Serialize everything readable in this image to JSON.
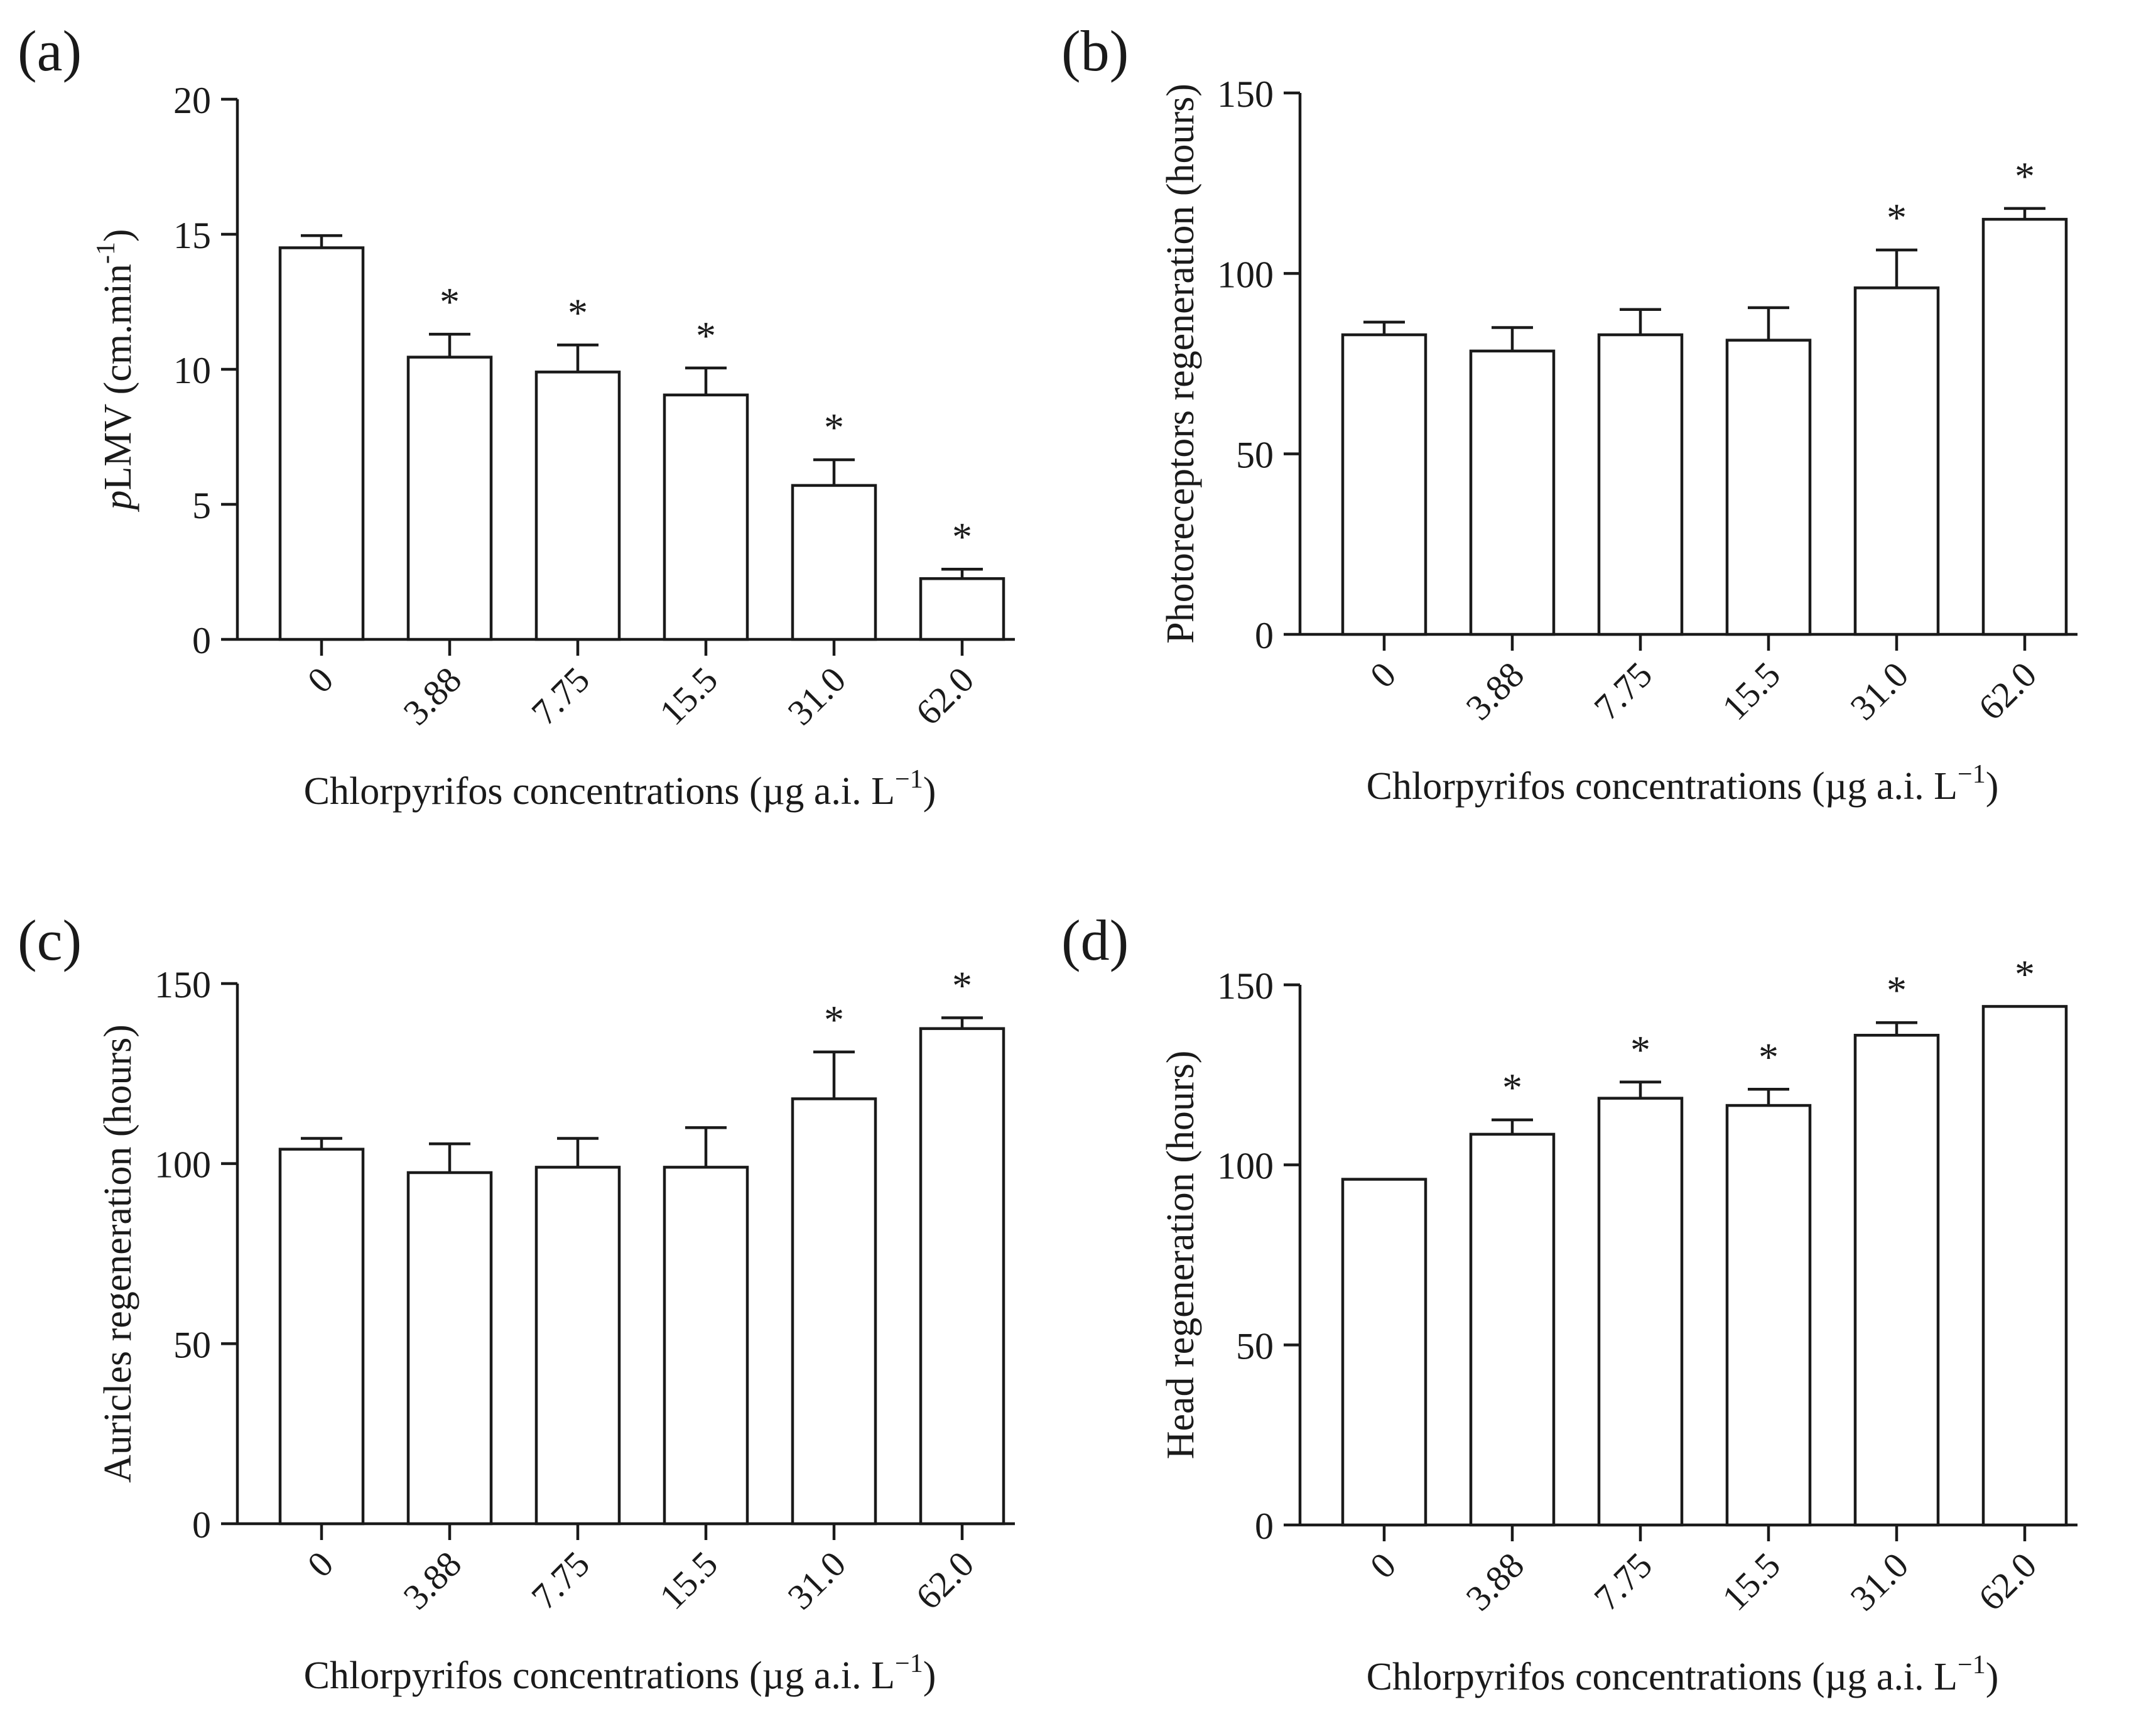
{
  "figure": {
    "panels": [
      {
        "label": "(a)"
      },
      {
        "label": "(b)"
      },
      {
        "label": "(c)"
      },
      {
        "label": "(d)"
      }
    ]
  },
  "chart_data": [
    {
      "panel": "(a)",
      "type": "bar",
      "categories": [
        "0",
        "3.88",
        "7.75",
        "15.5",
        "31.0",
        "62.0"
      ],
      "values": [
        14.5,
        10.45,
        9.9,
        9.05,
        5.7,
        2.25
      ],
      "errors": [
        0.45,
        0.85,
        1.0,
        1.0,
        0.95,
        0.35
      ],
      "significance": [
        "",
        "*",
        "*",
        "*",
        "*",
        "*"
      ],
      "ylim": [
        0,
        20
      ],
      "yticks": [
        0,
        5,
        10,
        15,
        20
      ],
      "ylabel": {
        "italic": "p",
        "main": "LMV (cm.min",
        "sup": "-1",
        "close": ")"
      },
      "xlabel": {
        "main": "Chlorpyrifos concentrations (µg a.i. L",
        "sup": "−1",
        "close": ")"
      }
    },
    {
      "panel": "(b)",
      "type": "bar",
      "categories": [
        "0",
        "3.88",
        "7.75",
        "15.5",
        "31.0",
        "62.0"
      ],
      "values": [
        83,
        78.5,
        83,
        81.5,
        96,
        115
      ],
      "errors": [
        3.5,
        6.5,
        7,
        9,
        10.5,
        3
      ],
      "significance": [
        "",
        "",
        "",
        "",
        "*",
        "*"
      ],
      "ylim": [
        0,
        150
      ],
      "yticks": [
        0,
        50,
        100,
        150
      ],
      "ylabel": {
        "italic": "",
        "main": "Photoreceptors regeneration (hours)",
        "sup": "",
        "close": ""
      },
      "xlabel": {
        "main": "Chlorpyrifos concentrations (µg a.i. L",
        "sup": "−1",
        "close": ")"
      }
    },
    {
      "panel": "(c)",
      "type": "bar",
      "categories": [
        "0",
        "3.88",
        "7.75",
        "15.5",
        "31.0",
        "62.0"
      ],
      "values": [
        104,
        97.5,
        99,
        99,
        118,
        137.5
      ],
      "errors": [
        3,
        8,
        8,
        11,
        13,
        3
      ],
      "significance": [
        "",
        "",
        "",
        "",
        "*",
        "*"
      ],
      "ylim": [
        0,
        150
      ],
      "yticks": [
        0,
        50,
        100,
        150
      ],
      "ylabel": {
        "italic": "",
        "main": "Auricles regeneration (hours)",
        "sup": "",
        "close": ""
      },
      "xlabel": {
        "main": "Chlorpyrifos concentrations (µg a.i. L",
        "sup": "−1",
        "close": ")"
      }
    },
    {
      "panel": "(d)",
      "type": "bar",
      "categories": [
        "0",
        "3.88",
        "7.75",
        "15.5",
        "31.0",
        "62.0"
      ],
      "values": [
        96,
        108.5,
        118.5,
        116.5,
        136,
        144
      ],
      "errors": [
        0,
        4,
        4.5,
        4.5,
        3.5,
        0
      ],
      "significance": [
        "",
        "*",
        "*",
        "*",
        "*",
        "*"
      ],
      "ylim": [
        0,
        150
      ],
      "yticks": [
        0,
        50,
        100,
        150
      ],
      "ylabel": {
        "italic": "",
        "main": "Head regeneration (hours)",
        "sup": "",
        "close": ""
      },
      "xlabel": {
        "main": "Chlorpyrifos concentrations (µg a.i. L",
        "sup": "−1",
        "close": ")"
      }
    }
  ]
}
